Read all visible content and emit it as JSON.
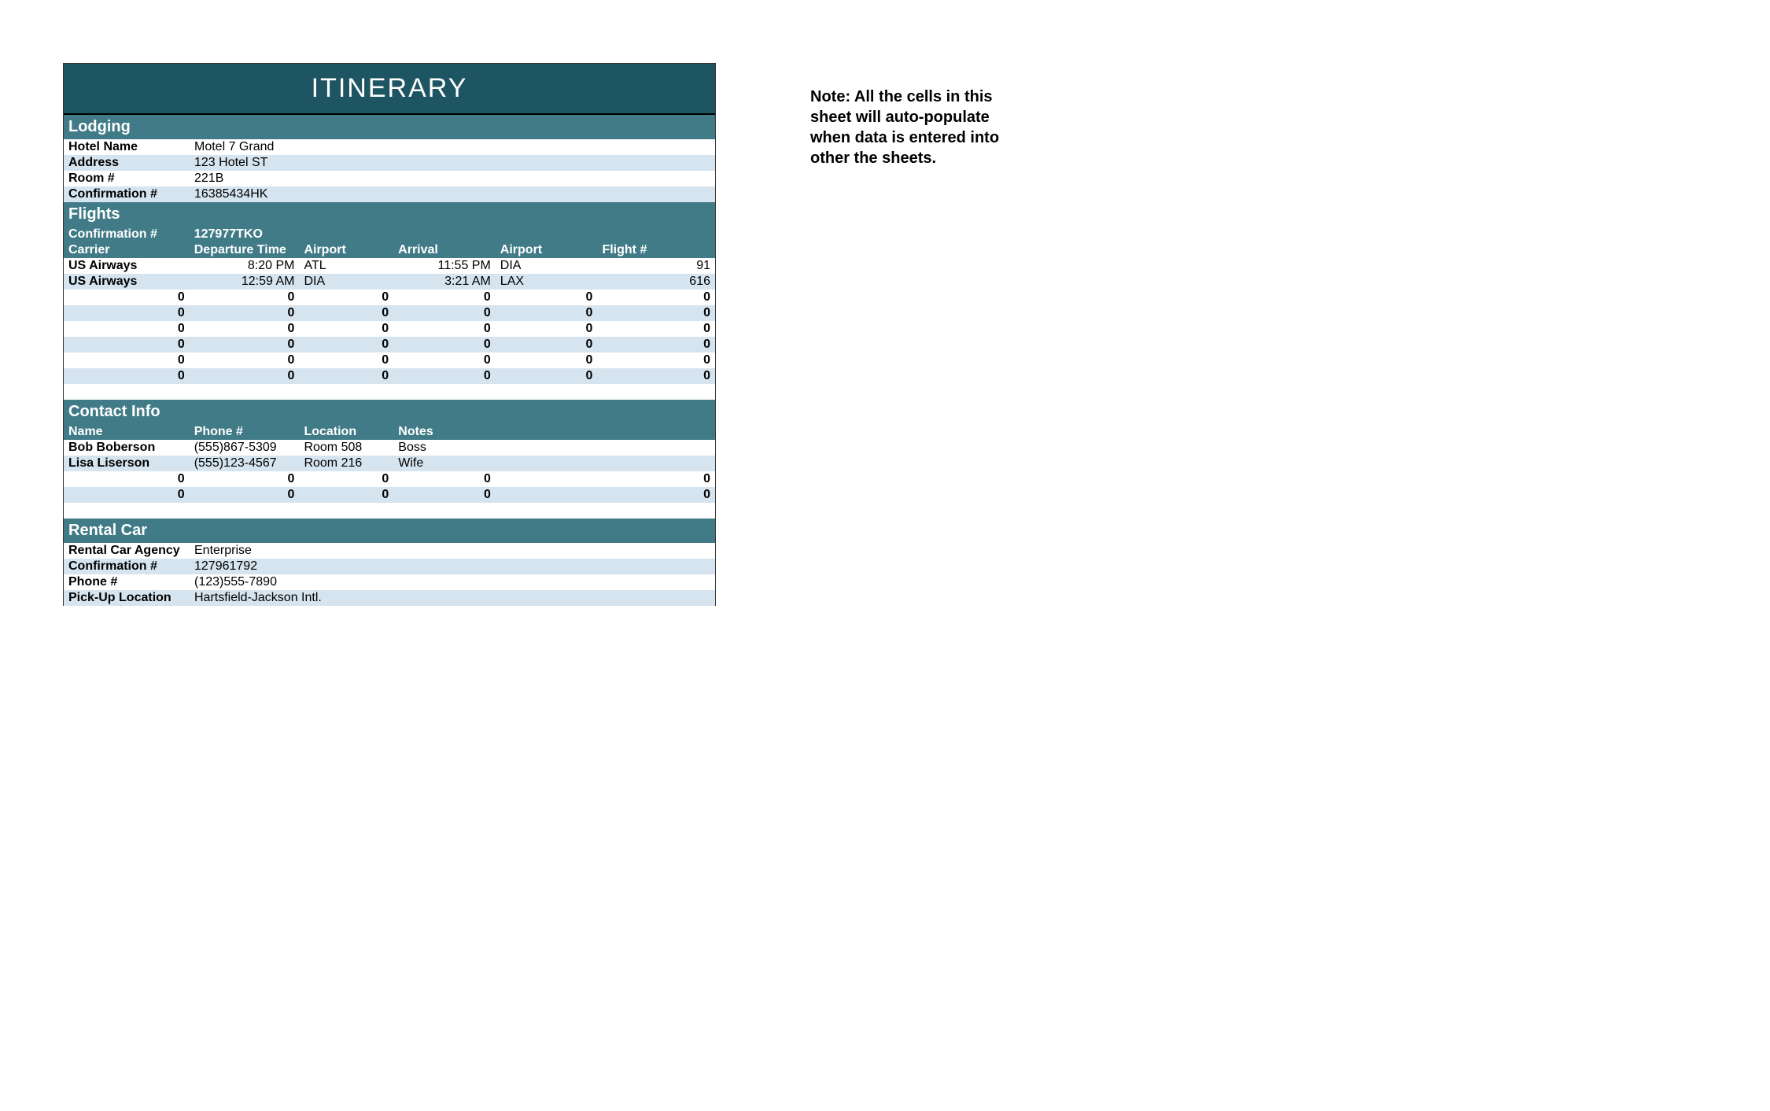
{
  "title": "ITINERARY",
  "colors": {
    "title_bg": "#1d5562",
    "section_bg": "#407b87",
    "stripe_odd": "#d6e4ef",
    "stripe_even": "#ffffff",
    "text_light": "#ffffff",
    "text_dark": "#000000"
  },
  "lodging": {
    "section_label": "Lodging",
    "rows": [
      {
        "label": "Hotel Name",
        "value": "Motel 7 Grand"
      },
      {
        "label": "Address",
        "value": "123 Hotel ST"
      },
      {
        "label": "Room #",
        "value": "221B"
      },
      {
        "label": "Confirmation #",
        "value": "16385434HK"
      }
    ]
  },
  "flights": {
    "section_label": "Flights",
    "conf_label": "Confirmation #",
    "conf_value": "127977TKO",
    "headers": [
      "Carrier",
      "Departure Time",
      "Airport",
      "Arrival",
      "Airport",
      "Flight #"
    ],
    "rows": [
      [
        "US Airways",
        "8:20 PM",
        "ATL",
        "11:55 PM",
        "DIA",
        "91"
      ],
      [
        "US Airways",
        "12:59 AM",
        "DIA",
        "3:21 AM",
        "LAX",
        "616"
      ],
      [
        "0",
        "0",
        "0",
        "0",
        "0",
        "0"
      ],
      [
        "0",
        "0",
        "0",
        "0",
        "0",
        "0"
      ],
      [
        "0",
        "0",
        "0",
        "0",
        "0",
        "0"
      ],
      [
        "0",
        "0",
        "0",
        "0",
        "0",
        "0"
      ],
      [
        "0",
        "0",
        "0",
        "0",
        "0",
        "0"
      ],
      [
        "0",
        "0",
        "0",
        "0",
        "0",
        "0"
      ]
    ]
  },
  "contacts": {
    "section_label": "Contact Info",
    "headers": [
      "Name",
      "Phone #",
      "Location",
      "Notes"
    ],
    "rows": [
      [
        "Bob Boberson",
        "(555)867-5309",
        "Room 508",
        "Boss"
      ],
      [
        "Lisa Liserson",
        "(555)123-4567",
        "Room 216",
        "Wife"
      ],
      [
        "0",
        "0",
        "0",
        "0"
      ],
      [
        "0",
        "0",
        "0",
        "0"
      ]
    ]
  },
  "rental": {
    "section_label": "Rental Car",
    "rows": [
      {
        "label": "Rental Car Agency",
        "value": "Enterprise"
      },
      {
        "label": "Confirmation #",
        "value": "127961792"
      },
      {
        "label": "Phone #",
        "value": "(123)555-7890"
      },
      {
        "label": "Pick-Up Location",
        "value": "Hartsfield-Jackson Intl."
      }
    ]
  },
  "note_text": "Note: All the cells in this sheet will auto-populate when data is entered into other the sheets."
}
